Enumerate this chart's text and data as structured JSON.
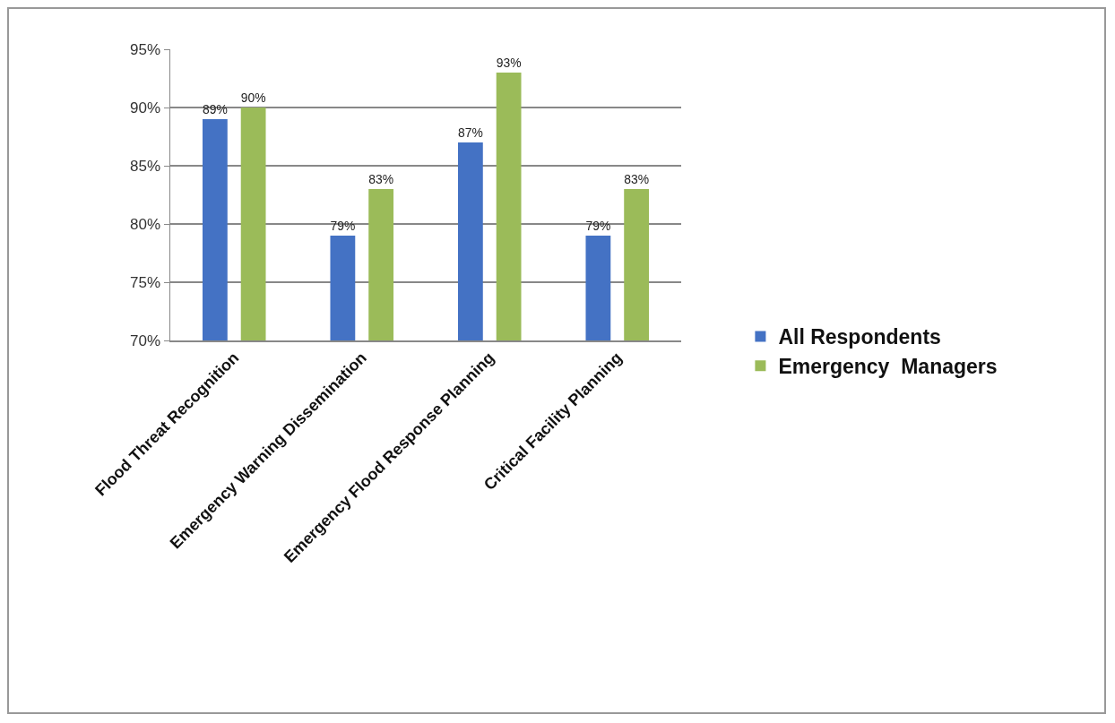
{
  "chart_data": {
    "type": "bar",
    "categories": [
      "Flood Threat Recognition",
      "Emergency Warning Dissemination",
      "Emergency Flood Response Planning",
      "Critical Facility Planning"
    ],
    "series": [
      {
        "name": "All Respondents",
        "color": "#4472c4",
        "values": [
          89,
          79,
          87,
          79
        ],
        "value_labels": [
          "89%",
          "79%",
          "87%",
          "79%"
        ]
      },
      {
        "name": "Emergency  Managers",
        "color": "#9bbb59",
        "values": [
          90,
          83,
          93,
          83
        ],
        "value_labels": [
          "90%",
          "83%",
          "93%",
          "83%"
        ]
      }
    ],
    "ylim": [
      70,
      95
    ],
    "yticks": [
      {
        "value": 70,
        "label": "70%"
      },
      {
        "value": 75,
        "label": "75%"
      },
      {
        "value": 80,
        "label": "80%"
      },
      {
        "value": 85,
        "label": "85%"
      },
      {
        "value": 90,
        "label": "90%"
      },
      {
        "value": 95,
        "label": "95%"
      }
    ],
    "grid": "y",
    "legend": "right"
  }
}
